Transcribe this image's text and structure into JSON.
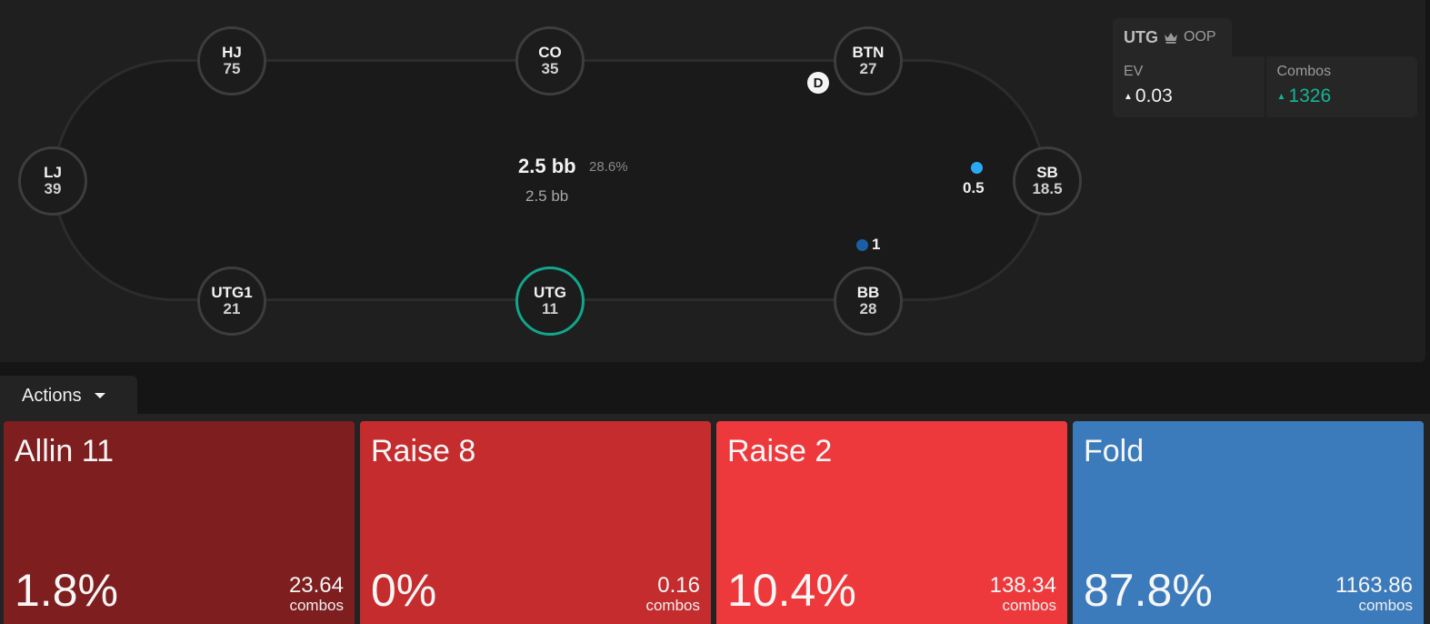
{
  "table": {
    "seats": [
      {
        "key": "hj",
        "name": "HJ",
        "stack": "75"
      },
      {
        "key": "co",
        "name": "CO",
        "stack": "35"
      },
      {
        "key": "btn",
        "name": "BTN",
        "stack": "27"
      },
      {
        "key": "lj",
        "name": "LJ",
        "stack": "39"
      },
      {
        "key": "sb",
        "name": "SB",
        "stack": "18.5"
      },
      {
        "key": "utg1",
        "name": "UTG1",
        "stack": "21"
      },
      {
        "key": "utg",
        "name": "UTG",
        "stack": "11",
        "active": true
      },
      {
        "key": "bb",
        "name": "BB",
        "stack": "28"
      }
    ],
    "dealer_label": "D",
    "bets": {
      "sb": {
        "amount": "0.5",
        "color": "#29a9f2"
      },
      "bb": {
        "amount": "1",
        "color": "#1a5fa3"
      }
    },
    "pot": {
      "main": "2.5 bb",
      "pct": "28.6%",
      "sub": "2.5 bb"
    }
  },
  "info": {
    "position": "UTG",
    "icon": "crown-icon",
    "ip": "OOP",
    "ev_label": "EV",
    "ev_value": "0.03",
    "combos_label": "Combos",
    "combos_value": "1326",
    "accent": "#12b596"
  },
  "actions": {
    "tab_label": "Actions",
    "cards": [
      {
        "title": "Allin 11",
        "pct": "1.8%",
        "combos": "23.64",
        "unit": "combos",
        "color": "#7e1e1f"
      },
      {
        "title": "Raise 8",
        "pct": "0%",
        "combos": "0.16",
        "unit": "combos",
        "color": "#c52c2e"
      },
      {
        "title": "Raise 2",
        "pct": "10.4%",
        "combos": "138.34",
        "unit": "combos",
        "color": "#ee393c"
      },
      {
        "title": "Fold",
        "pct": "87.8%",
        "combos": "1163.86",
        "unit": "combos",
        "color": "#3c7bbb"
      }
    ]
  }
}
